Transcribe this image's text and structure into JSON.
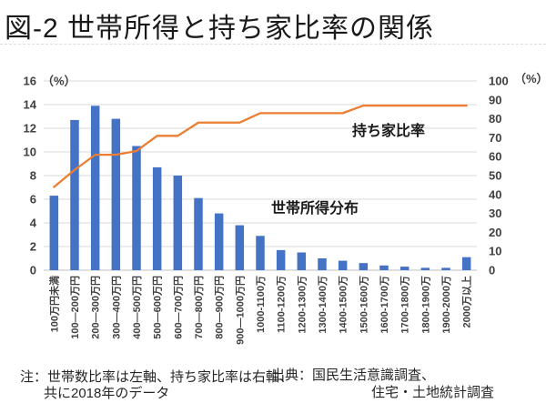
{
  "title": "図-2 世帯所得と持ち家比率の関係",
  "notes": {
    "note_line1": "注：世帯数比率は左軸、持ち家比率は右軸、",
    "note_line2": "共に2018年のデータ",
    "source_line1": "出典：国民生活意識調査、",
    "source_line2": "住宅・土地統計調査"
  },
  "chart_data": {
    "type": "bar",
    "subtype": "combo-bar-line-dual-axis",
    "grid": true,
    "legend_position": "none",
    "categories": [
      "100万円未満",
      "100—200万円",
      "200—300万円",
      "300—400万円",
      "400—500万円",
      "500—600万円",
      "600—700万円",
      "700—800万円",
      "800—900万円",
      "900—1000万円",
      "1000-1100万",
      "1100-1200万",
      "1200-1300万",
      "1300-1400万",
      "1400-1500万",
      "1500-1600万",
      "1600-1700万",
      "1700-1800万",
      "1800-1900万",
      "1900-2000万",
      "2000万以上"
    ],
    "series": [
      {
        "name": "世帯所得分布",
        "kind": "bar",
        "axis": "left",
        "color": "#4472C4",
        "values": [
          6.3,
          12.7,
          13.9,
          12.8,
          10.5,
          8.7,
          8.0,
          6.1,
          4.8,
          3.8,
          2.9,
          1.7,
          1.5,
          1.0,
          0.8,
          0.6,
          0.4,
          0.3,
          0.2,
          0.2,
          1.1
        ]
      },
      {
        "name": "持ち家比率",
        "kind": "line",
        "axis": "right",
        "color": "#ED7D31",
        "values": [
          44,
          53,
          61,
          61,
          63,
          71,
          71,
          78,
          78,
          78,
          83,
          83,
          83,
          83,
          83,
          87,
          87,
          87,
          87,
          87,
          87
        ]
      }
    ],
    "left_axis": {
      "unit": "（%）",
      "min": 0,
      "max": 16,
      "step": 2,
      "ticks": [
        "16",
        "14",
        "12",
        "10",
        "8",
        "6",
        "4",
        "2",
        "0"
      ]
    },
    "right_axis": {
      "unit": "（%）",
      "min": 0,
      "max": 100,
      "step": 10,
      "ticks": [
        "100",
        "90",
        "80",
        "70",
        "60",
        "50",
        "40",
        "30",
        "20",
        "10",
        "0"
      ]
    },
    "annotations": [
      {
        "text": "持ち家比率",
        "x": 387,
        "y": 149
      },
      {
        "text": "世帯所得分布",
        "x": 298,
        "y": 234
      }
    ],
    "colors": {
      "gridline": "#D9D9D9",
      "baseline": "#BFBFBF",
      "tick_text": "#404040"
    }
  }
}
